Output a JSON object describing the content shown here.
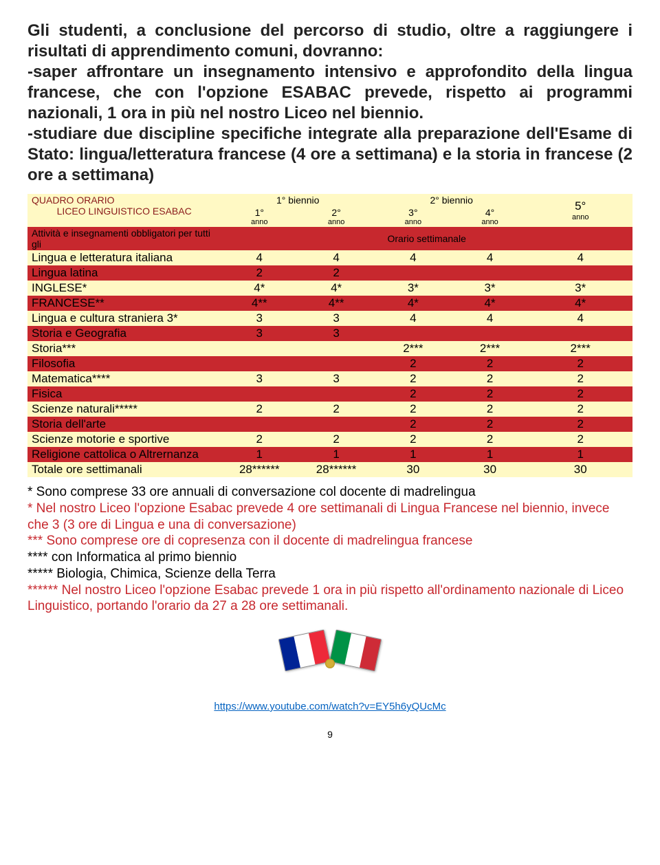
{
  "intro": {
    "p1": "Gli studenti, a conclusione del percorso di studio, oltre a raggiungere i risultati di apprendimento comuni, dovranno:",
    "b1": "-saper affrontare un insegnamento intensivo e approfondito della lingua francese, che con l'opzione ESABAC prevede, rispetto ai programmi nazionali, 1 ora in più nel nostro Liceo nel biennio.",
    "b2": "-studiare due discipline specifiche integrate alla preparazione dell'Esame di Stato: lingua/letteratura francese (4 ore a settimana) e la storia in francese (2 ore a settimana)"
  },
  "table": {
    "quadro": "QUADRO ORARIO",
    "liceo": "LICEO LINGUISTICO ESABAC",
    "biennio1": "1° biennio",
    "biennio2": "2° biennio",
    "anni": [
      "1° anno",
      "2° anno",
      "3° anno",
      "4° anno",
      "5° anno"
    ],
    "attivita": "Attività e insegnamenti obbligatori per tutti gli",
    "orario": "Orario settimanale",
    "rows": [
      {
        "label": "Lingua e letteratura italiana",
        "v": [
          "4",
          "4",
          "4",
          "4",
          "4"
        ],
        "cls": "row-yellow"
      },
      {
        "label": "Lingua latina",
        "v": [
          "2",
          "2",
          "",
          "",
          ""
        ],
        "cls": "row-red"
      },
      {
        "label": "INGLESE*",
        "v": [
          "4*",
          "4*",
          "3*",
          "3*",
          "3*"
        ],
        "cls": "row-yellow"
      },
      {
        "label": "FRANCESE**",
        "v": [
          "4**",
          "4**",
          "4*",
          "4*",
          "4*"
        ],
        "cls": "row-red"
      },
      {
        "label": "Lingua e cultura straniera 3*",
        "v": [
          "3",
          "3",
          "4",
          "4",
          "4"
        ],
        "cls": "row-yellow"
      },
      {
        "label": "Storia e Geografia",
        "v": [
          "3",
          "3",
          "",
          "",
          ""
        ],
        "cls": "row-red"
      },
      {
        "label": "Storia***",
        "v": [
          "",
          "",
          "2***",
          "2***",
          "2***"
        ],
        "cls": "row-yellow"
      },
      {
        "label": "Filosofia",
        "v": [
          "",
          "",
          "2",
          "2",
          "2"
        ],
        "cls": "row-red"
      },
      {
        "label": "Matematica****",
        "v": [
          "3",
          "3",
          "2",
          "2",
          "2"
        ],
        "cls": "row-yellow"
      },
      {
        "label": "Fisica",
        "v": [
          "",
          "",
          "2",
          "2",
          "2"
        ],
        "cls": "row-red"
      },
      {
        "label": "Scienze naturali*****",
        "v": [
          "2",
          "2",
          "2",
          "2",
          "2"
        ],
        "cls": "row-yellow"
      },
      {
        "label": "Storia dell'arte",
        "v": [
          "",
          "",
          "2",
          "2",
          "2"
        ],
        "cls": "row-red"
      },
      {
        "label": "Scienze motorie e sportive",
        "v": [
          "2",
          "2",
          "2",
          "2",
          "2"
        ],
        "cls": "row-yellow"
      },
      {
        "label": "Religione cattolica o Altrernanza",
        "v": [
          "1",
          "1",
          "1",
          "1",
          "1"
        ],
        "cls": "row-red"
      },
      {
        "label": "Totale ore settimanali",
        "v": [
          "28******",
          "28******",
          "30",
          "30",
          "30"
        ],
        "cls": "row-yellow totale"
      }
    ]
  },
  "notes": {
    "n1": "* Sono comprese 33 ore annuali di conversazione col docente di madrelingua",
    "n2": "* Nel nostro Liceo l'opzione Esabac prevede 4 ore settimanali di Lingua Francese nel biennio, invece che 3 (3 ore di Lingua e una di conversazione)",
    "n3": "*** Sono comprese ore di copresenza con il docente di madrelingua francese",
    "n4": "**** con Informatica al primo biennio",
    "n5": "***** Biologia, Chimica, Scienze della Terra",
    "n6": "****** Nel nostro Liceo l'opzione Esabac prevede 1 ora in più rispetto all'ordinamento nazionale di Liceo Linguistico, portando l'orario da 27 a 28 ore settimanali."
  },
  "link": {
    "text": "https://www.youtube.com/watch?v=EY5h6yQUcMc",
    "href": "https://www.youtube.com/watch?v=EY5h6yQUcMc"
  },
  "pageNumber": "9",
  "colors": {
    "yellow": "#fff9c4",
    "red": "#c7282e",
    "fr": [
      "#002395",
      "#ffffff",
      "#ed2939"
    ],
    "it": [
      "#009246",
      "#ffffff",
      "#ce2b37"
    ]
  }
}
